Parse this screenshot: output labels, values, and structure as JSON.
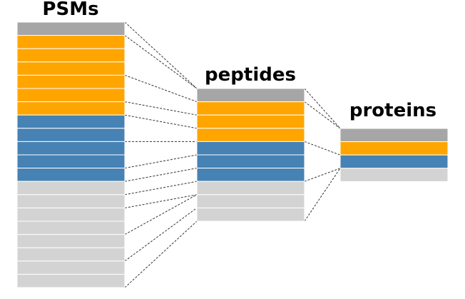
{
  "columns": [
    {
      "title": "PSMs",
      "rows": [
        "gray",
        "orange",
        "orange",
        "orange",
        "orange",
        "orange",
        "orange",
        "blue",
        "blue",
        "blue",
        "blue",
        "blue",
        "lightgray",
        "lightgray",
        "lightgray",
        "lightgray",
        "lightgray",
        "lightgray",
        "lightgray",
        "lightgray"
      ]
    },
    {
      "title": "peptides",
      "rows": [
        "gray",
        "orange",
        "orange",
        "orange",
        "blue",
        "blue",
        "blue",
        "lightgray",
        "lightgray",
        "lightgray"
      ]
    },
    {
      "title": "proteins",
      "rows": [
        "gray",
        "orange",
        "blue",
        "lightgray"
      ]
    }
  ],
  "mappings": [
    {
      "from": 0,
      "to": 1,
      "pairs": [
        [
          0,
          0
        ],
        [
          1,
          0
        ],
        [
          4,
          1
        ],
        [
          6,
          2
        ],
        [
          7,
          3
        ],
        [
          9,
          4
        ],
        [
          11,
          5
        ],
        [
          12,
          6
        ],
        [
          13,
          7
        ],
        [
          14,
          8
        ],
        [
          16,
          8
        ],
        [
          18,
          9
        ],
        [
          20,
          10
        ]
      ]
    },
    {
      "from": 1,
      "to": 2,
      "pairs": [
        [
          0,
          0
        ],
        [
          1,
          0
        ],
        [
          4,
          2
        ],
        [
          7,
          3
        ],
        [
          10,
          3
        ]
      ]
    }
  ],
  "colors": {
    "gray": "#a6a6a6",
    "orange": "#ffa500",
    "blue": "#4682b4",
    "lightgray": "#d3d3d3",
    "separator": "#ffffff",
    "connector": "#333333"
  }
}
